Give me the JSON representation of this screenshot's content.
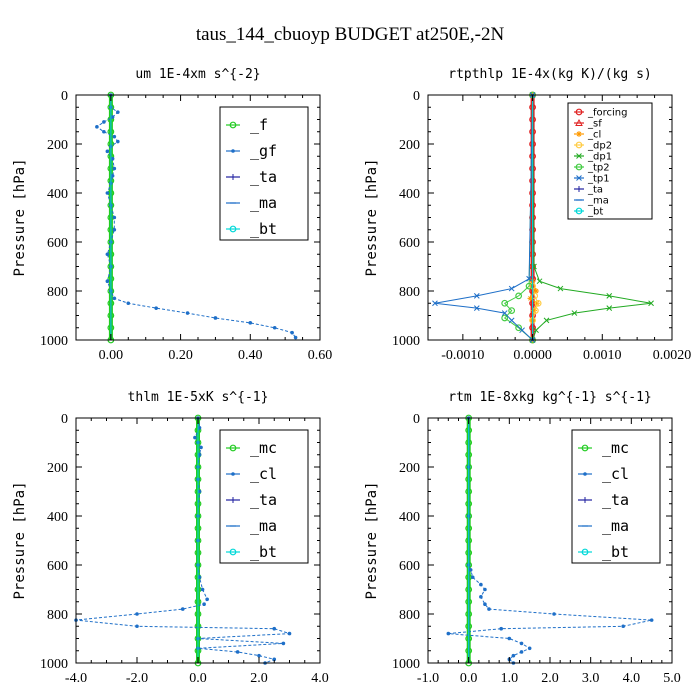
{
  "suptitle": "taus_144_cbuoyp  BUDGET at250E,-2N",
  "chart_data": [
    {
      "id": "um",
      "type": "line",
      "title": "um   1E-4xm s^{-2}",
      "ylabel": "Pressure [hPa]",
      "xlim": [
        -0.1,
        0.6
      ],
      "ylim": [
        1000,
        0
      ],
      "xticks": [
        0.0,
        0.2,
        0.4,
        0.6
      ],
      "xticklabels": [
        "0.00",
        "0.20",
        "0.40",
        "0.60"
      ],
      "yticks": [
        0,
        200,
        400,
        600,
        800,
        1000
      ],
      "yticklabels": [
        "0",
        "200",
        "400",
        "600",
        "800",
        "1000"
      ],
      "legend": {
        "style": "big",
        "position": "upper-right"
      },
      "series": [
        {
          "name": "_f",
          "color": "#22cc22",
          "marker": "o",
          "thick": true,
          "x": [
            0.0,
            0.0
          ],
          "y": [
            0,
            1000
          ]
        },
        {
          "name": "_gf",
          "color": "#1e6fc8",
          "marker": "dot",
          "dashed": true,
          "x": [
            0.0,
            0.0,
            0.02,
            0.005,
            -0.02,
            -0.04,
            -0.02,
            0.01,
            0.02,
            0.0,
            -0.01,
            0.005,
            0.01,
            0.005,
            0.0,
            -0.01,
            0.0,
            0.01,
            0.01,
            0.0,
            -0.01,
            0.0,
            -0.01,
            0.0,
            0.01,
            0.05,
            0.13,
            0.22,
            0.3,
            0.4,
            0.47,
            0.52,
            0.53
          ],
          "y": [
            0,
            50,
            70,
            90,
            110,
            130,
            150,
            170,
            190,
            210,
            230,
            260,
            300,
            330,
            360,
            400,
            450,
            500,
            550,
            600,
            650,
            700,
            760,
            800,
            830,
            850,
            870,
            890,
            910,
            930,
            950,
            970,
            990
          ]
        },
        {
          "name": "_ta",
          "color": "#2020a0",
          "marker": "plus",
          "x": [
            0.0,
            0.0
          ],
          "y": [
            0,
            1000
          ]
        },
        {
          "name": "_ma",
          "color": "#1e6fc8",
          "marker": "dash",
          "x": [
            0.0,
            0.0
          ],
          "y": [
            0,
            1000
          ]
        },
        {
          "name": "_bt",
          "color": "#00d8d8",
          "marker": "o",
          "x": [
            0.0,
            0.0
          ],
          "y": [
            0,
            1000
          ]
        }
      ]
    },
    {
      "id": "rtpthlp",
      "type": "line",
      "title": "rtpthlp   1E-4x(kg K)/(kg s)",
      "ylabel": "Pressure [hPa]",
      "xlim": [
        -0.0015,
        0.002
      ],
      "ylim": [
        1000,
        0
      ],
      "xticks": [
        -0.001,
        0.0,
        0.001,
        0.002
      ],
      "xticklabels": [
        "-0.0010",
        "0.0000",
        "0.0010",
        "0.0020"
      ],
      "yticks": [
        0,
        200,
        400,
        600,
        800,
        1000
      ],
      "yticklabels": [
        "0",
        "200",
        "400",
        "600",
        "800",
        "1000"
      ],
      "legend": {
        "style": "small",
        "position": "upper-right"
      },
      "series": [
        {
          "name": "_forcing",
          "color": "#e02020",
          "marker": "o",
          "thick": true,
          "x": [
            0.0,
            0.0
          ],
          "y": [
            0,
            1000
          ]
        },
        {
          "name": "_sf",
          "color": "#e02020",
          "marker": "tri",
          "x": [
            0.0,
            0.0
          ],
          "y": [
            0,
            1000
          ]
        },
        {
          "name": "_cl",
          "color": "#ff9900",
          "marker": "star",
          "x": [
            0.0,
            0.0,
            5e-05,
            -3e-05,
            6e-05,
            2e-05,
            0.0,
            0.0
          ],
          "y": [
            0,
            760,
            800,
            830,
            850,
            880,
            920,
            1000
          ]
        },
        {
          "name": "_dp2",
          "color": "#ffcc44",
          "marker": "o",
          "x": [
            0.0,
            0.0,
            3e-05,
            8e-05,
            4e-05,
            0.0,
            0.0
          ],
          "y": [
            0,
            780,
            820,
            850,
            880,
            920,
            1000
          ]
        },
        {
          "name": "_dp1",
          "color": "#22aa22",
          "marker": "x",
          "x": [
            0.0,
            2e-05,
            0.0001,
            0.0004,
            0.0011,
            0.0017,
            0.0011,
            0.0006,
            0.0002,
            5e-05,
            0.0
          ],
          "y": [
            0,
            700,
            760,
            790,
            820,
            850,
            870,
            890,
            920,
            960,
            1000
          ]
        },
        {
          "name": "_tp2",
          "color": "#44cc44",
          "marker": "o",
          "x": [
            0.0,
            -5e-05,
            -0.0002,
            -0.0004,
            -0.0003,
            -0.0004,
            -0.0002,
            0.0
          ],
          "y": [
            0,
            780,
            820,
            850,
            880,
            910,
            950,
            1000
          ]
        },
        {
          "name": "_tp1",
          "color": "#1e6fc8",
          "marker": "x",
          "x": [
            0.0,
            -5e-05,
            -0.0003,
            -0.0008,
            -0.0014,
            -0.0008,
            -0.0004,
            -0.0003,
            -0.00015,
            0.0
          ],
          "y": [
            0,
            750,
            790,
            820,
            850,
            870,
            890,
            920,
            960,
            1000
          ]
        },
        {
          "name": "_ta",
          "color": "#2020a0",
          "marker": "plus",
          "x": [
            0.0,
            0.0
          ],
          "y": [
            0,
            1000
          ]
        },
        {
          "name": "_ma",
          "color": "#1e6fc8",
          "marker": "dash",
          "x": [
            0.0,
            0.0
          ],
          "y": [
            0,
            1000
          ]
        },
        {
          "name": "_bt",
          "color": "#00d8d8",
          "marker": "o",
          "x": [
            0.0,
            0.0
          ],
          "y": [
            0,
            1000
          ]
        }
      ]
    },
    {
      "id": "thlm",
      "type": "line",
      "title": "thlm   1E-5xK s^{-1}",
      "ylabel": "Pressure [hPa]",
      "xlim": [
        -4.0,
        4.0
      ],
      "ylim": [
        1000,
        0
      ],
      "xticks": [
        -4.0,
        -2.0,
        0.0,
        2.0,
        4.0
      ],
      "xticklabels": [
        "-4.0",
        "-2.0",
        "0.0",
        "2.0",
        "4.0"
      ],
      "yticks": [
        0,
        200,
        400,
        600,
        800,
        1000
      ],
      "yticklabels": [
        "0",
        "200",
        "400",
        "600",
        "800",
        "1000"
      ],
      "legend": {
        "style": "big",
        "position": "upper-right"
      },
      "series": [
        {
          "name": "_mc",
          "color": "#22cc22",
          "marker": "o",
          "thick": true,
          "x": [
            0.0,
            0.0
          ],
          "y": [
            0,
            1000
          ]
        },
        {
          "name": "_cl",
          "color": "#1e6fc8",
          "marker": "dot",
          "dashed": true,
          "x": [
            0.0,
            0.05,
            -0.1,
            0.0,
            0.1,
            0.05,
            0.0,
            0.0,
            0.05,
            0.0,
            0.0,
            0.0,
            0.05,
            0.15,
            0.3,
            0.2,
            -0.5,
            -2.0,
            -4.0,
            -2.0,
            2.5,
            3.0,
            0.0,
            2.8,
            0.0,
            1.3,
            2.0,
            2.5,
            2.2
          ],
          "y": [
            0,
            40,
            80,
            100,
            120,
            150,
            200,
            250,
            300,
            400,
            500,
            600,
            650,
            700,
            740,
            760,
            780,
            800,
            825,
            850,
            860,
            880,
            900,
            920,
            940,
            955,
            970,
            985,
            1000
          ]
        },
        {
          "name": "_ta",
          "color": "#2020a0",
          "marker": "plus",
          "x": [
            0.0,
            0.0
          ],
          "y": [
            0,
            1000
          ]
        },
        {
          "name": "_ma",
          "color": "#1e6fc8",
          "marker": "dash",
          "x": [
            0.0,
            0.0
          ],
          "y": [
            0,
            1000
          ]
        },
        {
          "name": "_bt",
          "color": "#00d8d8",
          "marker": "o",
          "x": [
            0.0,
            0.0
          ],
          "y": [
            0,
            1000
          ]
        }
      ]
    },
    {
      "id": "rtm",
      "type": "line",
      "title": "rtm   1E-8xkg kg^{-1} s^{-1}",
      "ylabel": "Pressure [hPa]",
      "xlim": [
        -1.0,
        5.0
      ],
      "ylim": [
        1000,
        0
      ],
      "xticks": [
        -1.0,
        0.0,
        1.0,
        2.0,
        3.0,
        4.0,
        5.0
      ],
      "xticklabels": [
        "-1.0",
        "0.0",
        "1.0",
        "2.0",
        "3.0",
        "4.0",
        "5.0"
      ],
      "yticks": [
        0,
        200,
        400,
        600,
        800,
        1000
      ],
      "yticklabels": [
        "0",
        "200",
        "400",
        "600",
        "800",
        "1000"
      ],
      "legend": {
        "style": "big",
        "position": "upper-right"
      },
      "series": [
        {
          "name": "_mc",
          "color": "#22cc22",
          "marker": "o",
          "thick": true,
          "x": [
            0.0,
            0.0
          ],
          "y": [
            0,
            1000
          ]
        },
        {
          "name": "_cl",
          "color": "#1e6fc8",
          "marker": "dot",
          "dashed": true,
          "x": [
            0.0,
            0.0,
            0.0,
            0.0,
            0.05,
            0.1,
            0.3,
            0.4,
            0.3,
            0.4,
            0.5,
            2.1,
            4.5,
            3.8,
            0.8,
            -0.5,
            1.0,
            1.3,
            1.5,
            1.3,
            1.1,
            1.0,
            1.1
          ],
          "y": [
            0,
            200,
            400,
            600,
            620,
            650,
            680,
            700,
            730,
            760,
            780,
            800,
            825,
            850,
            860,
            880,
            900,
            920,
            940,
            955,
            970,
            985,
            1000
          ]
        },
        {
          "name": "_ta",
          "color": "#2020a0",
          "marker": "plus",
          "x": [
            0.0,
            0.0
          ],
          "y": [
            0,
            1000
          ]
        },
        {
          "name": "_ma",
          "color": "#1e6fc8",
          "marker": "dash",
          "x": [
            0.0,
            0.0
          ],
          "y": [
            0,
            1000
          ]
        },
        {
          "name": "_bt",
          "color": "#00d8d8",
          "marker": "o",
          "x": [
            0.0,
            0.0
          ],
          "y": [
            0,
            1000
          ]
        }
      ]
    }
  ]
}
